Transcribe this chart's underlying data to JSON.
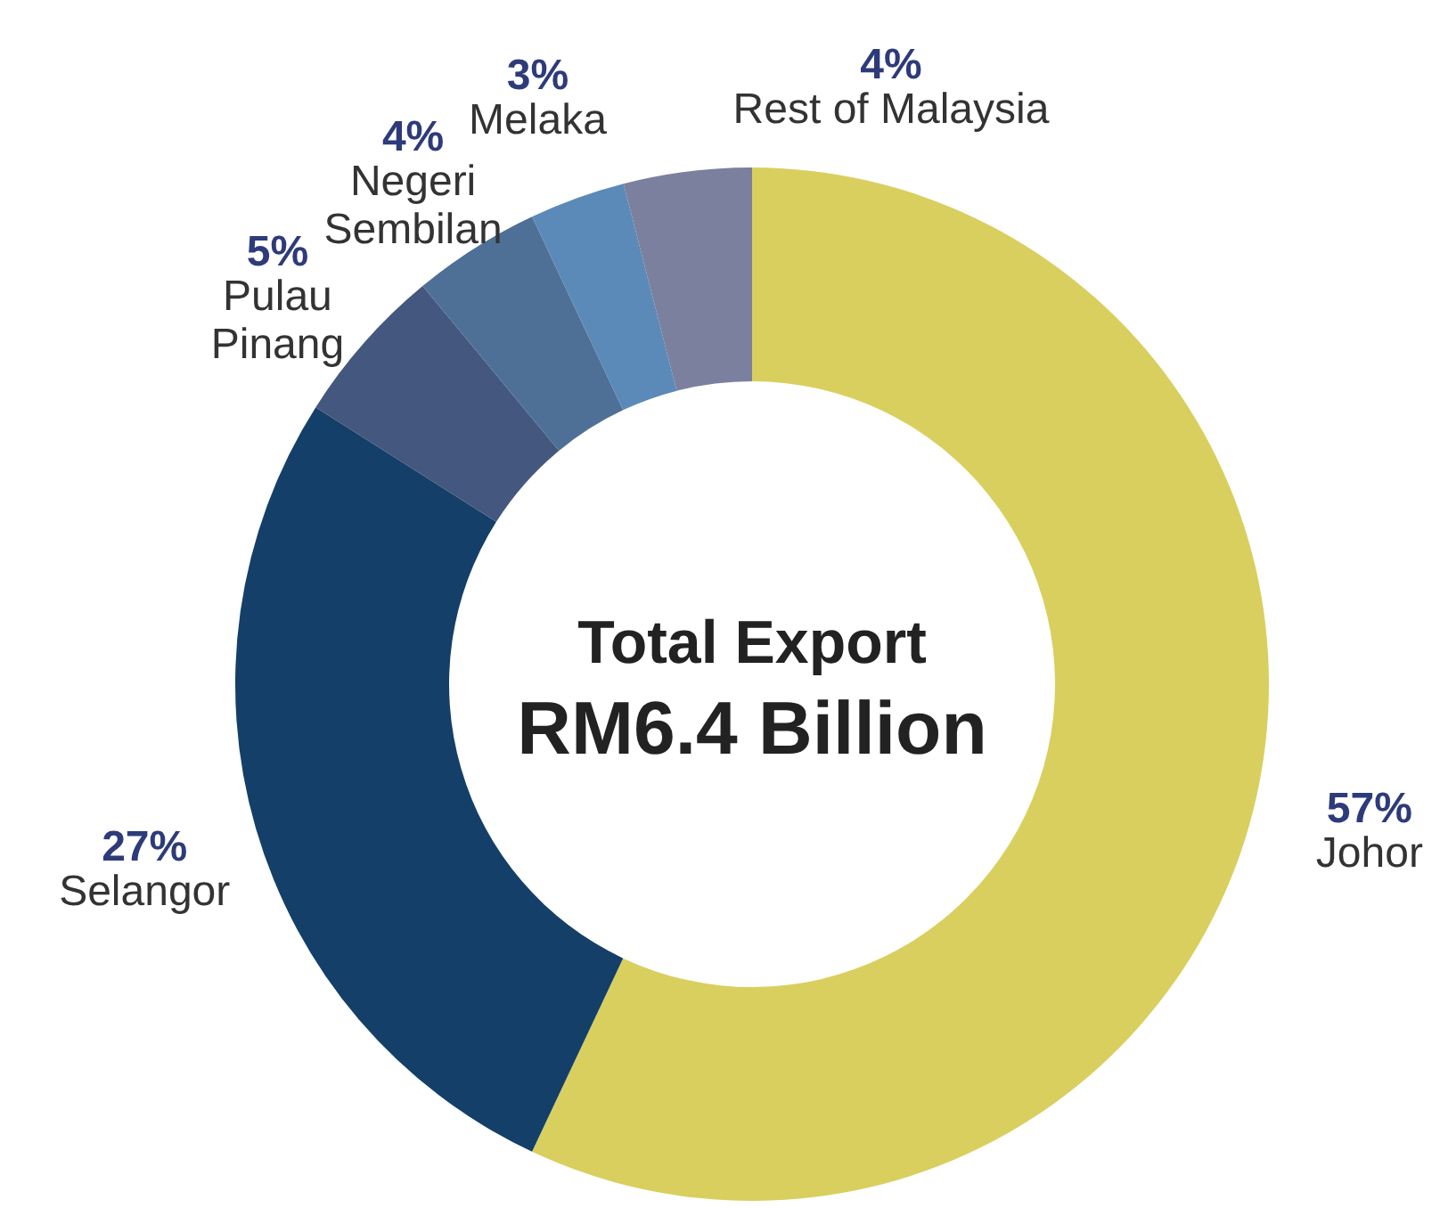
{
  "chart_data": {
    "type": "donut",
    "categories": [
      "Johor",
      "Selangor",
      "Pulau Pinang",
      "Negeri Sembilan",
      "Melaka",
      "Rest of Malaysia"
    ],
    "values": [
      57,
      27,
      5,
      4,
      3,
      4
    ],
    "value_labels": [
      "57%",
      "27%",
      "5%",
      "4%",
      "3%",
      "4%"
    ],
    "colors": [
      "#d9cf5f",
      "#143f68",
      "#44577e",
      "#4f7096",
      "#5b8ab8",
      "#7a809e"
    ],
    "annotations": [
      "Total Export",
      "RM6.4 Billion"
    ]
  }
}
